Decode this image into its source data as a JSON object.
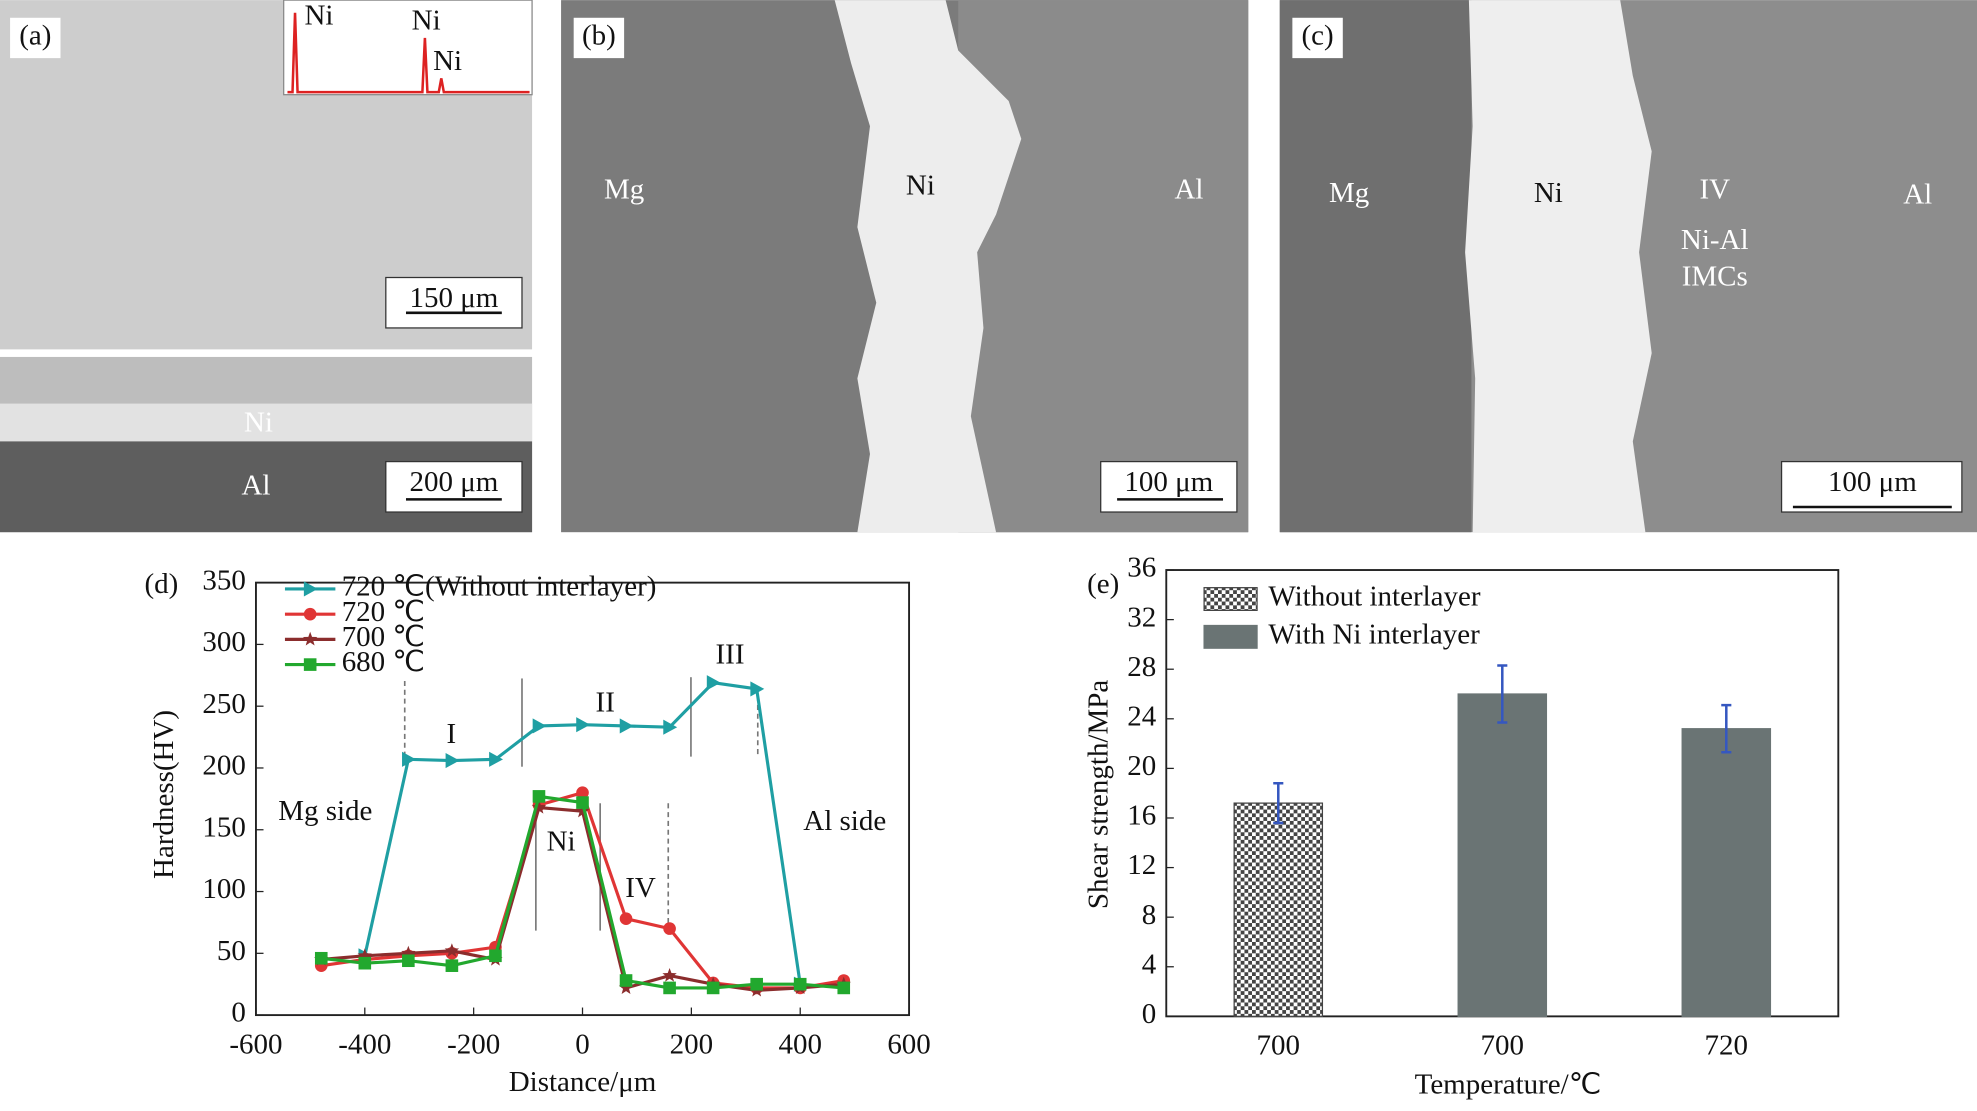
{
  "panels": [
    {
      "label": "(a)",
      "texts": [
        "Ni",
        "Ni",
        "Ni",
        "150 μm",
        "Ni",
        "Al",
        "200 μm"
      ]
    },
    {
      "label": "(b)",
      "texts": [
        "Mg",
        "Ni",
        "Al",
        "100 μm"
      ]
    },
    {
      "label": "(c)",
      "texts": [
        "Mg",
        "Ni",
        "IV",
        "Ni-Al",
        "IMCs",
        "Al",
        "100 μm"
      ]
    }
  ],
  "chart_data": [
    {
      "type": "line",
      "panel_label": "(d)",
      "x_label": "Distance/μm",
      "y_label": "Hardness(HV)",
      "x": [
        -480,
        -400,
        -320,
        -240,
        -160,
        -80,
        0,
        80,
        160,
        240,
        320,
        400,
        480
      ],
      "series": [
        {
          "name": "720 ℃(Without interlayer)",
          "color": "#1f9fa3",
          "marker": "triangle",
          "values": [
            null,
            48,
            207,
            206,
            207,
            234,
            235,
            234,
            233,
            269,
            264,
            25,
            null
          ]
        },
        {
          "name": "720 ℃",
          "color": "#e03535",
          "marker": "circle",
          "values": [
            40,
            45,
            48,
            50,
            55,
            170,
            180,
            78,
            70,
            26,
            22,
            22,
            28
          ]
        },
        {
          "name": "700 ℃",
          "color": "#8b2d2d",
          "marker": "star",
          "values": [
            45,
            48,
            50,
            52,
            45,
            168,
            165,
            22,
            32,
            25,
            20,
            22,
            25
          ]
        },
        {
          "name": "680 ℃",
          "color": "#22a82e",
          "marker": "square",
          "values": [
            46,
            42,
            44,
            40,
            48,
            177,
            172,
            28,
            22,
            22,
            25,
            25,
            22
          ]
        }
      ],
      "annotations": [
        "Mg side",
        "I",
        "II",
        "III",
        "Ni",
        "IV",
        "Al side"
      ],
      "xlim": [
        -600,
        600
      ],
      "xticks": [
        -600,
        -400,
        -200,
        0,
        200,
        400,
        600
      ],
      "ylim": [
        0,
        350
      ],
      "yticks": [
        0,
        50,
        100,
        150,
        200,
        250,
        300,
        350
      ]
    },
    {
      "type": "bar",
      "panel_label": "(e)",
      "x_label": "Temperature/℃",
      "y_label": "Shear strength/MPa",
      "categories": [
        "700",
        "700",
        "720"
      ],
      "series": [
        {
          "name": "Without interlayer",
          "color": "#444444",
          "pattern": "checker",
          "values": [
            17.2,
            null,
            null
          ],
          "errors": [
            1.6,
            null,
            null
          ]
        },
        {
          "name": "With Ni interlayer",
          "color": "#6a7474",
          "values": [
            null,
            26,
            23.2
          ],
          "errors": [
            null,
            2.3,
            1.9
          ]
        }
      ],
      "error_color": "#3557c0",
      "ylim": [
        0,
        36
      ],
      "yticks": [
        0,
        4,
        8,
        12,
        16,
        20,
        24,
        28,
        32,
        36
      ]
    }
  ]
}
